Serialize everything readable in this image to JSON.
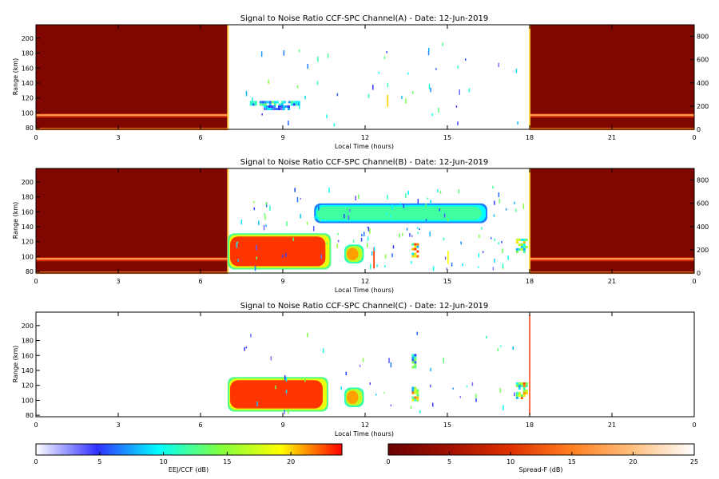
{
  "chart_data": [
    {
      "type": "heatmap",
      "title": "Signal to Noise Ratio CCF-SPC Channel(A) - Date: 12-Jun-2019",
      "xlabel": "Local Time (hours)",
      "ylabel": "Range (km)",
      "xlim": [
        0,
        24
      ],
      "ylim": [
        78,
        218
      ],
      "y2lim": [
        0,
        900
      ],
      "xticks": [
        "0",
        "3",
        "6",
        "9",
        "12",
        "15",
        "18",
        "21",
        "0"
      ],
      "yticks": [
        "80",
        "100",
        "120",
        "140",
        "160",
        "180",
        "200"
      ],
      "y2ticks": [
        "0",
        "200",
        "400",
        "600",
        "800"
      ],
      "night_spreadF_hours": [
        [
          0,
          7.0
        ],
        [
          18.0,
          24
        ]
      ],
      "spreadF_layer_km": 97,
      "regions": [
        {
          "x": [
            7.8,
            9.7
          ],
          "y": [
            108,
            116
          ],
          "db": 13
        },
        {
          "x": [
            8.3,
            9.3
          ],
          "y": [
            103,
            110
          ],
          "db": 9
        },
        {
          "x": [
            12.8,
            12.85
          ],
          "y": [
            108,
            124
          ],
          "db": 20
        }
      ]
    },
    {
      "type": "heatmap",
      "title": "Signal to Noise Ratio CCF-SPC Channel(B) - Date: 12-Jun-2019",
      "xlabel": "Local Time (hours)",
      "ylabel": "Range (km)",
      "xlim": [
        0,
        24
      ],
      "ylim": [
        78,
        218
      ],
      "y2lim": [
        0,
        900
      ],
      "xticks": [
        "0",
        "3",
        "6",
        "9",
        "12",
        "15",
        "18",
        "21",
        "0"
      ],
      "yticks": [
        "80",
        "100",
        "120",
        "140",
        "160",
        "180",
        "200"
      ],
      "y2ticks": [
        "0",
        "200",
        "400",
        "600",
        "800"
      ],
      "night_spreadF_hours": [
        [
          0,
          7.0
        ],
        [
          18.0,
          24
        ]
      ],
      "spreadF_layer_km": 97,
      "regions": [
        {
          "x": [
            7.05,
            10.7
          ],
          "y": [
            86,
            128
          ],
          "db": 23
        },
        {
          "x": [
            11.3,
            11.9
          ],
          "y": [
            94,
            113
          ],
          "db": 21
        },
        {
          "x": [
            12.3,
            12.35
          ],
          "y": [
            84,
            112
          ],
          "db": 23
        },
        {
          "x": [
            13.7,
            14.0
          ],
          "y": [
            96,
            118
          ],
          "db": 21
        },
        {
          "x": [
            15.0,
            15.05
          ],
          "y": [
            90,
            108
          ],
          "db": 19
        },
        {
          "x": [
            17.5,
            17.95
          ],
          "y": [
            104,
            124
          ],
          "db": 21
        },
        {
          "x": [
            10.5,
            14.5
          ],
          "y": [
            144,
            148
          ],
          "db": 7
        },
        {
          "x": [
            10.2,
            16.4
          ],
          "y": [
            148,
            168
          ],
          "db": 12
        }
      ]
    },
    {
      "type": "heatmap",
      "title": "Signal to Noise Ratio CCF-SPC Channel(C) - Date: 12-Jun-2019",
      "xlabel": "Local Time (hours)",
      "ylabel": "Range (km)",
      "xlim": [
        0,
        24
      ],
      "ylim": [
        78,
        218
      ],
      "xticks": [
        "0",
        "3",
        "6",
        "9",
        "12",
        "15",
        "18",
        "21",
        "0"
      ],
      "yticks": [
        "80",
        "100",
        "120",
        "140",
        "160",
        "180",
        "200"
      ],
      "regions": [
        {
          "x": [
            7.05,
            10.6
          ],
          "y": [
            88,
            128
          ],
          "db": 23
        },
        {
          "x": [
            11.3,
            11.9
          ],
          "y": [
            94,
            114
          ],
          "db": 21
        },
        {
          "x": [
            13.7,
            14.0
          ],
          "y": [
            98,
            118
          ],
          "db": 21
        },
        {
          "x": [
            13.7,
            13.95
          ],
          "y": [
            140,
            162
          ],
          "db": 14
        },
        {
          "x": [
            17.5,
            17.95
          ],
          "y": [
            100,
            124
          ],
          "db": 21
        },
        {
          "x": [
            17.98,
            18.02
          ],
          "y": [
            80,
            215
          ],
          "db": 23
        }
      ]
    }
  ],
  "colorbars": [
    {
      "label": "EEJ/CCF (dB)",
      "ticks": [
        "0",
        "5",
        "10",
        "15",
        "20"
      ],
      "range": [
        0,
        24
      ],
      "colors": [
        "#ffffff",
        "#3030ff",
        "#00ffff",
        "#80ff40",
        "#ffff00",
        "#ff0000"
      ]
    },
    {
      "label": "Spread-F (dB)",
      "ticks": [
        "0",
        "5",
        "10",
        "15",
        "20",
        "25"
      ],
      "range": [
        0,
        25
      ],
      "colors": [
        "#6a0000",
        "#a01000",
        "#e03000",
        "#ff8020",
        "#ffc080",
        "#ffffff"
      ]
    }
  ]
}
